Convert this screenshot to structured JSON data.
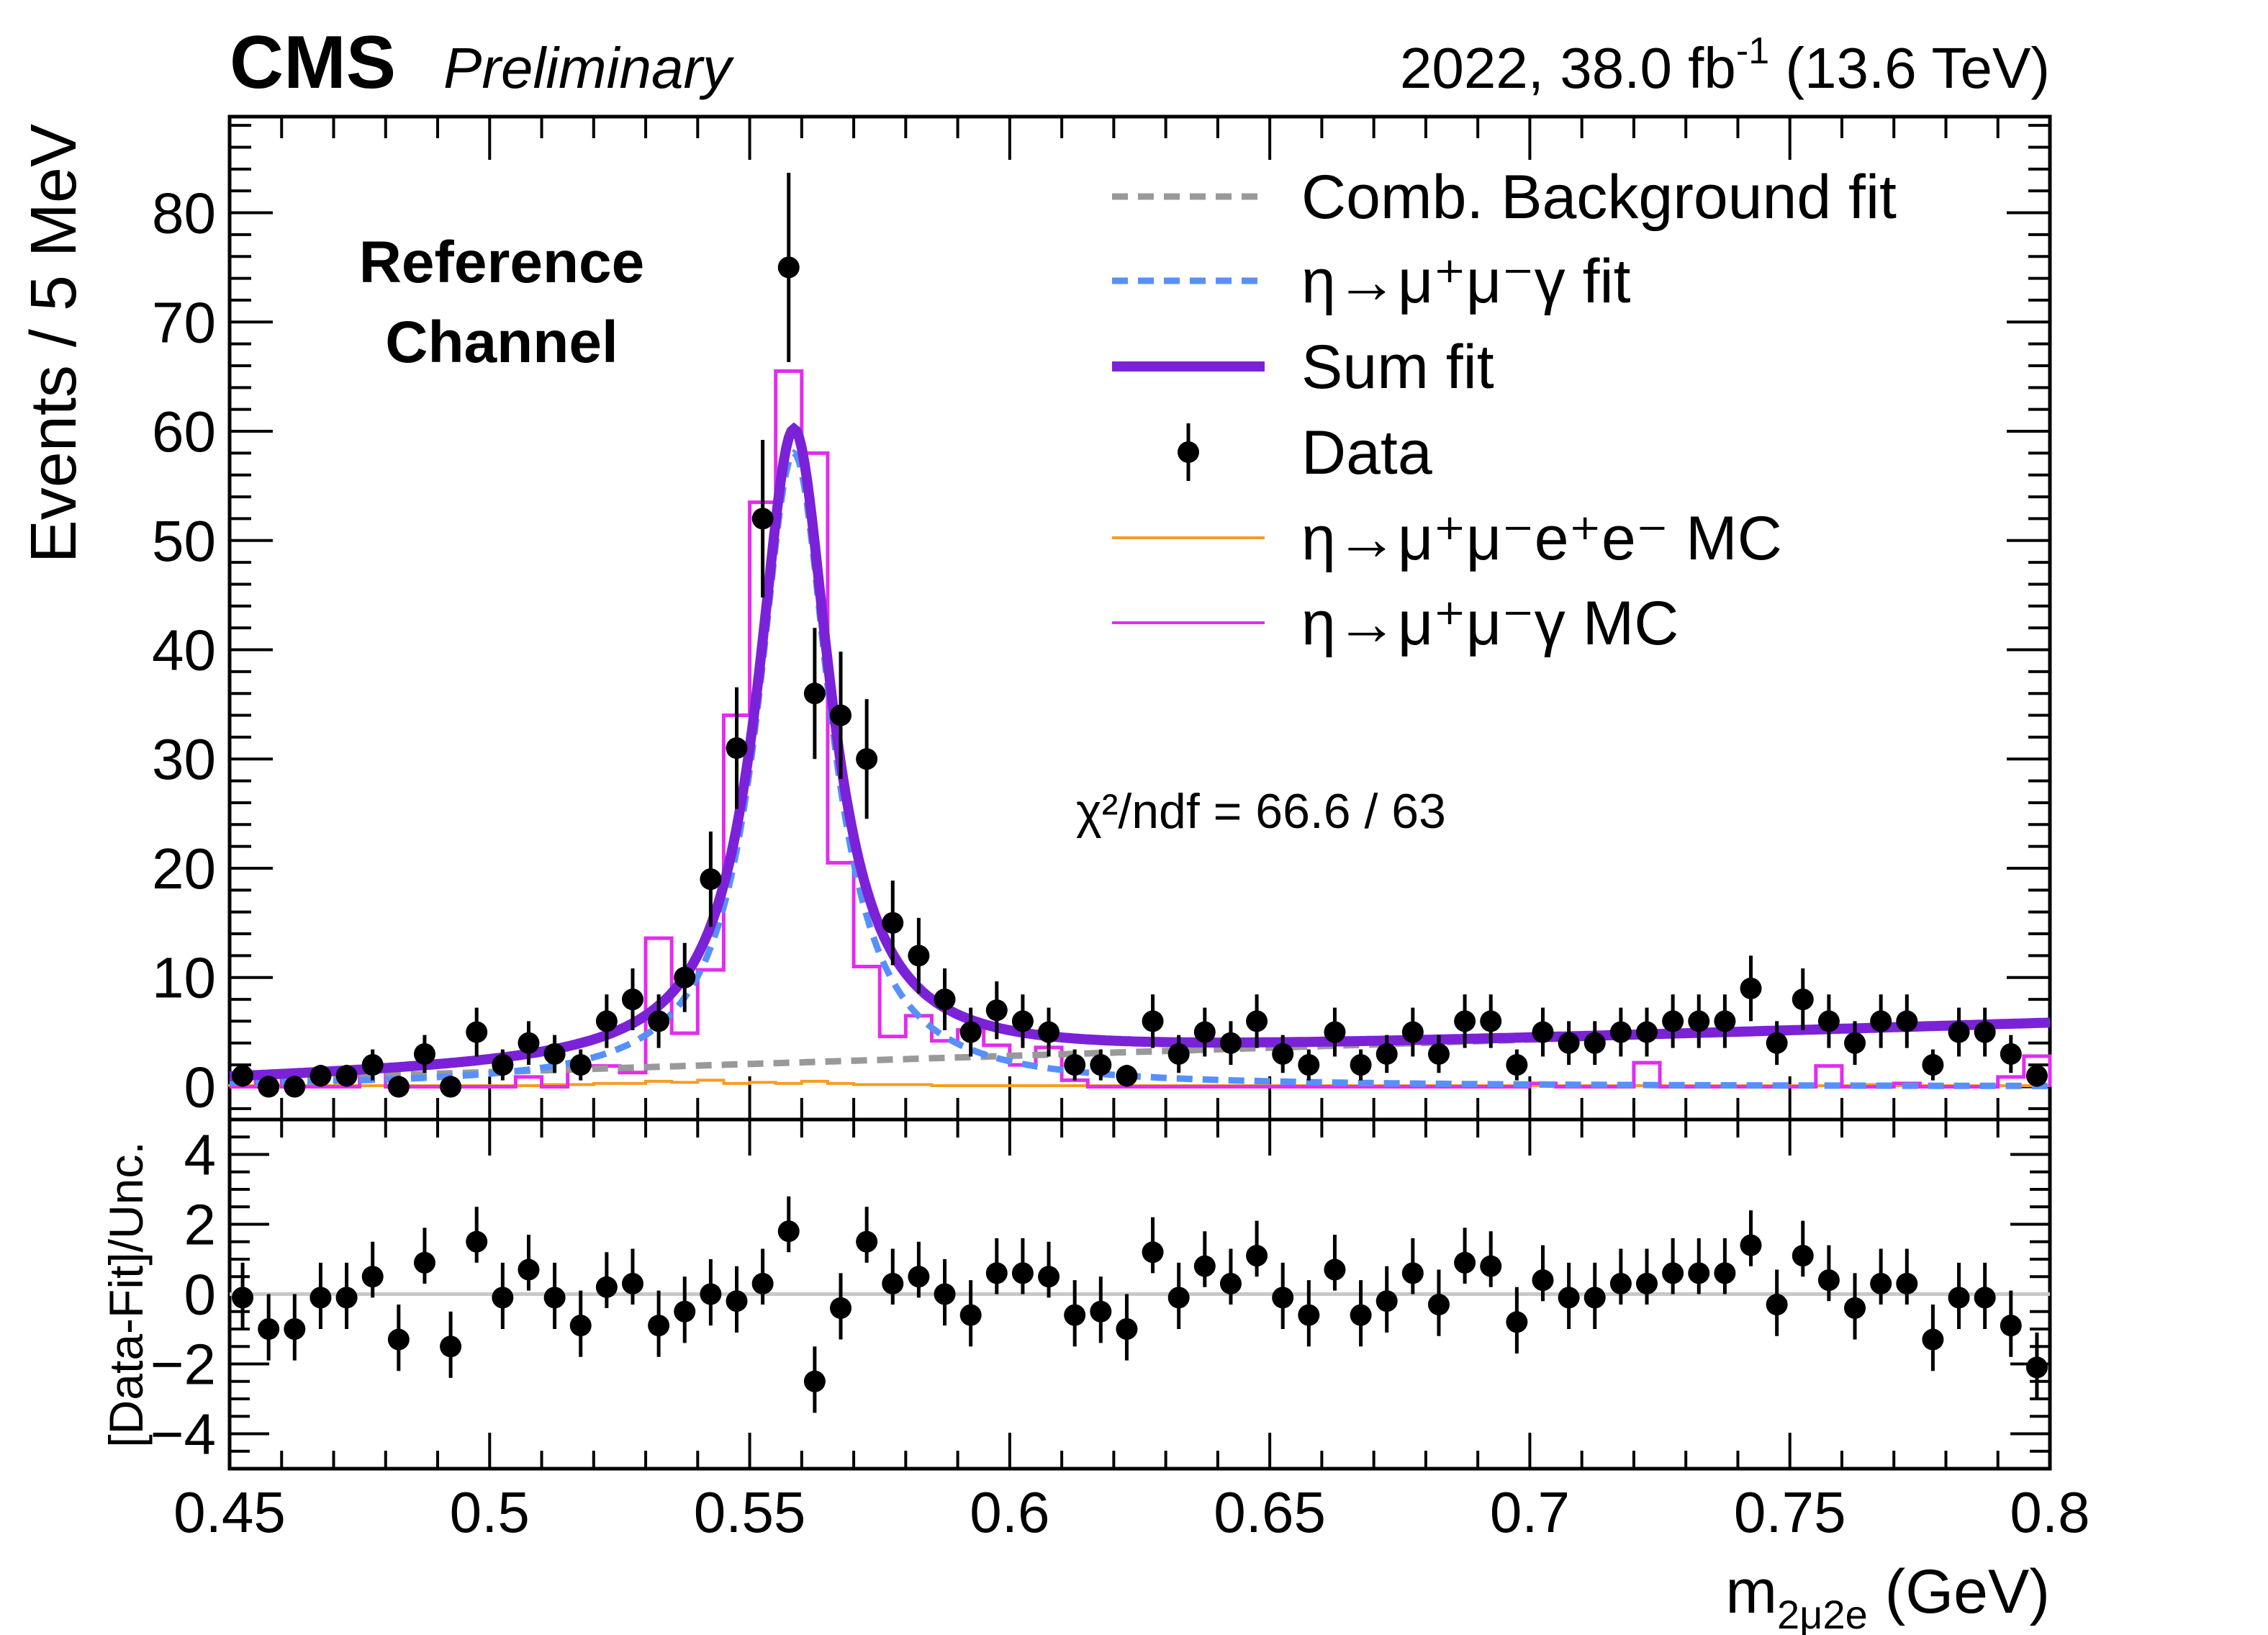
{
  "header": {
    "experiment": "CMS",
    "status": "Preliminary",
    "lumi_prefix": "2022, 38.0 fb",
    "lumi_sup": "-1",
    "lumi_suffix": " (13.6 TeV)"
  },
  "chart_data": [
    {
      "type": "histogram-fit",
      "title": "Reference Channel",
      "title_lines": [
        "Reference",
        "Channel"
      ],
      "xlabel_main": "m",
      "xlabel_sub": "2μ2e",
      "xlabel_unit": " (GeV)",
      "ylabel": "Events / 5 MeV",
      "xlim": [
        0.45,
        0.8
      ],
      "ylim": [
        -3,
        88.8
      ],
      "bin_width": 0.005,
      "x_ticks": [
        "0.45",
        "0.5",
        "0.55",
        "0.6",
        "0.65",
        "0.7",
        "0.75",
        "0.8"
      ],
      "y_ticks": [
        "0",
        "10",
        "20",
        "30",
        "40",
        "50",
        "60",
        "70",
        "80"
      ],
      "annotation": "χ²/ndf = 66.6 / 63",
      "legend": [
        {
          "label": "Comb. Background fit",
          "style": "dashed",
          "color": "#999999"
        },
        {
          "label": "η→μ⁺μ⁻γ fit",
          "style": "dashed",
          "color": "#5790fc"
        },
        {
          "label": "Sum fit",
          "style": "solid-thick",
          "color": "#7b22d8"
        },
        {
          "label": "Data",
          "style": "marker",
          "color": "#000000"
        },
        {
          "label": "η→μ⁺μ⁻e⁺e⁻ MC",
          "style": "solid",
          "color": "#f89c20"
        },
        {
          "label": "η→μ⁺μ⁻γ MC",
          "style": "solid",
          "color": "#e42bef"
        }
      ],
      "legend_placement": "top-right",
      "data": [
        1,
        0,
        0,
        1,
        1,
        2,
        0,
        3,
        0,
        5,
        2,
        4,
        3,
        2,
        6,
        8,
        6,
        10,
        19,
        31,
        52,
        75,
        36,
        34,
        30,
        15,
        12,
        8,
        5,
        7,
        6,
        5,
        2,
        2,
        1,
        6,
        3,
        5,
        4,
        6,
        3,
        2,
        5,
        2,
        3,
        5,
        3,
        6,
        6,
        2,
        5,
        4,
        4,
        5,
        5,
        6,
        6,
        6,
        9,
        4,
        8,
        6,
        4,
        6,
        6,
        2,
        5,
        5,
        3,
        1
      ],
      "mc_mumugamma": [
        0,
        1.3,
        0,
        0,
        0,
        1.7,
        0,
        0,
        0,
        0,
        0,
        0.9,
        0,
        1.9,
        1.9,
        1.3,
        13.6,
        4.9,
        10.7,
        34,
        53.5,
        65.5,
        58,
        20.5,
        11,
        4.6,
        6.5,
        4.2,
        5.2,
        3.8,
        2,
        3.6,
        0.6,
        0,
        0,
        0,
        0,
        0,
        0,
        0,
        0,
        0,
        0,
        0,
        0,
        0,
        0,
        0,
        0,
        0,
        0.3,
        0,
        0,
        0,
        2.2,
        0,
        0,
        0,
        0,
        0,
        0,
        1.9,
        0,
        0,
        0.3,
        0,
        0,
        0,
        0.9,
        2.8
      ],
      "mc_mumuee": [
        0.1,
        0.1,
        0.1,
        0.1,
        0.1,
        0.1,
        0.1,
        0.1,
        0.1,
        0.1,
        0.1,
        0.1,
        0.2,
        0.2,
        0.3,
        0.3,
        0.5,
        0.4,
        0.6,
        0.3,
        0.4,
        0.3,
        0.5,
        0.3,
        0.2,
        0.2,
        0.2,
        0.1,
        0.1,
        0.1,
        0.1,
        0.1,
        0.1,
        0.1,
        0.1,
        0.1,
        0.1,
        0.1,
        0.1,
        0.1,
        0.1,
        0.1,
        0.1,
        0.1,
        0.1,
        0.1,
        0.1,
        0.1,
        0.1,
        0.1,
        0.1,
        0.1,
        0.1,
        0.1,
        0.1,
        0.1,
        0.1,
        0.1,
        0.1,
        0.1,
        0.1,
        0.1,
        0.1,
        0.2,
        0.1,
        0.1,
        0.1,
        0.1,
        0.1,
        0.1
      ],
      "background_fit": {
        "model": "linear",
        "value_at_xmin": 0.6,
        "value_at_xmax": 5.8
      },
      "signal_fit": {
        "model": "lorentzian",
        "mean": 0.5585,
        "hwhm": 0.0085,
        "peak": 58
      }
    },
    {
      "type": "scatter",
      "ylabel": "[Data-Fit]/Unc.",
      "ylim": [
        -5,
        5
      ],
      "y_ticks": [
        "−4",
        "−2",
        "0",
        "2",
        "4"
      ],
      "y_tick_values": [
        -4,
        -2,
        0,
        2,
        4
      ],
      "reference_line": 0,
      "values": [
        -0.1,
        -1.0,
        -1.0,
        -0.1,
        -0.1,
        0.5,
        -1.3,
        0.9,
        -1.5,
        1.5,
        -0.1,
        0.7,
        -0.1,
        -0.9,
        0.2,
        0.3,
        -0.9,
        -0.5,
        0.0,
        -0.2,
        0.3,
        1.8,
        -2.5,
        -0.4,
        1.5,
        0.3,
        0.5,
        0.0,
        -0.6,
        0.6,
        0.6,
        0.5,
        -0.6,
        -0.5,
        -1.0,
        1.2,
        -0.1,
        0.8,
        0.3,
        1.1,
        -0.1,
        -0.6,
        0.7,
        -0.6,
        -0.2,
        0.6,
        -0.3,
        0.9,
        0.8,
        -0.8,
        0.4,
        -0.1,
        -0.1,
        0.3,
        0.3,
        0.6,
        0.6,
        0.6,
        1.4,
        -0.3,
        1.1,
        0.4,
        -0.4,
        0.3,
        0.3,
        -1.3,
        -0.1,
        -0.1,
        -0.9,
        -2.1
      ]
    }
  ]
}
